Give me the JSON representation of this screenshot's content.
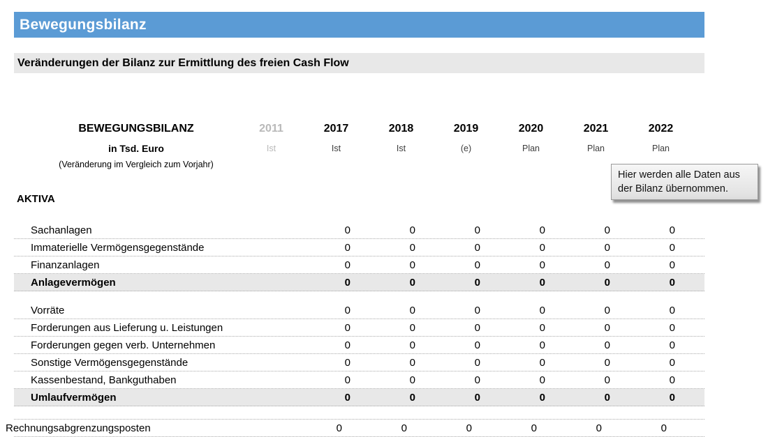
{
  "page": {
    "title": "Bewegungsbilanz",
    "subtitle": "Veränderungen der Bilanz zur Ermittlung des freien Cash Flow"
  },
  "colors": {
    "header_blue": "#5b9bd5",
    "band_gray": "#e8e8e8",
    "muted_gray": "#b9b9b9",
    "dotted_line": "#a9a9a9"
  },
  "tooltip": {
    "text": "Hier werden alle Daten aus der Bilanz übernommen."
  },
  "table": {
    "title": "BEWEGUNGSBILANZ",
    "unit": "in Tsd. Euro",
    "note": "(Veränderung im Vergleich zum Vorjahr)",
    "columns": [
      {
        "year": "2011",
        "status": "Ist"
      },
      {
        "year": "2017",
        "status": "Ist"
      },
      {
        "year": "2018",
        "status": "Ist"
      },
      {
        "year": "2019",
        "status": "(e)"
      },
      {
        "year": "2020",
        "status": "Plan"
      },
      {
        "year": "2021",
        "status": "Plan"
      },
      {
        "year": "2022",
        "status": "Plan"
      }
    ],
    "section": "AKTIVA",
    "rows": [
      {
        "label": "Sachanlagen",
        "values": [
          "0",
          "0",
          "0",
          "0",
          "0",
          "0"
        ]
      },
      {
        "label": "Immaterielle Vermögensgegenstände",
        "values": [
          "0",
          "0",
          "0",
          "0",
          "0",
          "0"
        ]
      },
      {
        "label": "Finanzanlagen",
        "values": [
          "0",
          "0",
          "0",
          "0",
          "0",
          "0"
        ]
      },
      {
        "label": "Anlagevermögen",
        "values": [
          "0",
          "0",
          "0",
          "0",
          "0",
          "0"
        ]
      },
      {
        "label": "Vorräte",
        "values": [
          "0",
          "0",
          "0",
          "0",
          "0",
          "0"
        ]
      },
      {
        "label": "Forderungen aus Lieferung u. Leistungen",
        "values": [
          "0",
          "0",
          "0",
          "0",
          "0",
          "0"
        ]
      },
      {
        "label": "Forderungen gegen verb. Unternehmen",
        "values": [
          "0",
          "0",
          "0",
          "0",
          "0",
          "0"
        ]
      },
      {
        "label": "Sonstige Vermögensgegenstände",
        "values": [
          "0",
          "0",
          "0",
          "0",
          "0",
          "0"
        ]
      },
      {
        "label": "Kassenbestand, Bankguthaben",
        "values": [
          "0",
          "0",
          "0",
          "0",
          "0",
          "0"
        ]
      },
      {
        "label": "Umlaufvermögen",
        "values": [
          "0",
          "0",
          "0",
          "0",
          "0",
          "0"
        ]
      },
      {
        "label": "Rechnungsabgrenzungsposten",
        "values": [
          "0",
          "0",
          "0",
          "0",
          "0",
          "0"
        ]
      }
    ]
  }
}
